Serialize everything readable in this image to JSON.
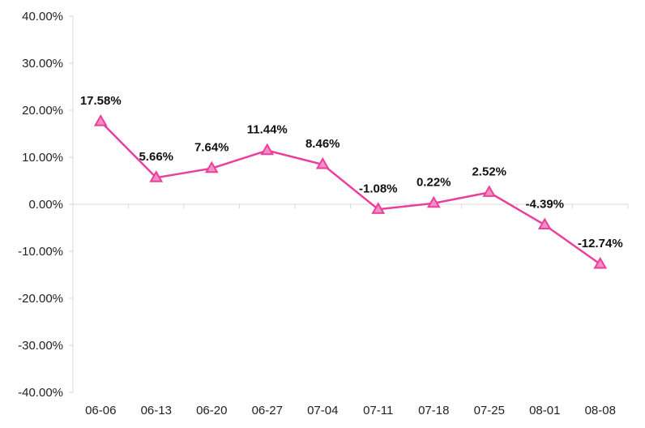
{
  "chart_data": {
    "type": "line",
    "categories": [
      "06-06",
      "06-13",
      "06-20",
      "06-27",
      "07-04",
      "07-11",
      "07-18",
      "07-25",
      "08-01",
      "08-08"
    ],
    "series": [
      {
        "values": [
          17.58,
          5.66,
          7.64,
          11.44,
          8.46,
          -1.08,
          0.22,
          2.52,
          -4.39,
          -12.74
        ],
        "labels": [
          "17.58%",
          "5.66%",
          "7.64%",
          "11.44%",
          "8.46%",
          "-1.08%",
          "0.22%",
          "2.52%",
          "-4.39%",
          "-12.74%"
        ],
        "color": "#e8409c",
        "marker": "triangle"
      }
    ],
    "ylim": [
      -40,
      40
    ],
    "yticks": [
      40,
      30,
      20,
      10,
      0,
      -10,
      -20,
      -30,
      -40
    ],
    "ytick_labels": [
      "40.00%",
      "30.00%",
      "20.00%",
      "10.00%",
      "0.00%",
      "-10.00%",
      "-20.00%",
      "-30.00%",
      "-40.00%"
    ],
    "title": "",
    "xlabel": "",
    "ylabel": "",
    "grid": false,
    "legend": "none"
  }
}
